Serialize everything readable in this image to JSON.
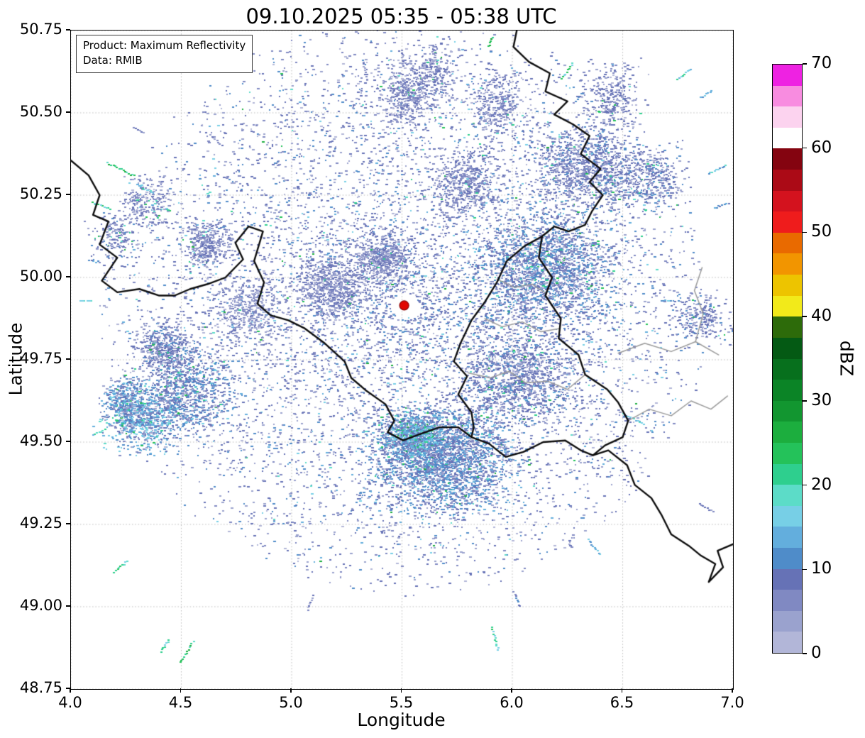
{
  "chart_data": {
    "type": "heatmap",
    "title": "09.10.2025 05:35 - 05:38 UTC",
    "xlabel": "Longitude",
    "ylabel": "Latitude",
    "xlim": [
      4.0,
      7.0
    ],
    "ylim": [
      48.75,
      50.75
    ],
    "grid": true,
    "x_ticks": [
      4.0,
      4.5,
      5.0,
      5.5,
      6.0,
      6.5,
      7.0
    ],
    "x_tick_labels": [
      "4.0",
      "4.5",
      "5.0",
      "5.5",
      "6.0",
      "6.5",
      "7.0"
    ],
    "y_ticks": [
      48.75,
      49.0,
      49.25,
      49.5,
      49.75,
      50.0,
      50.25,
      50.5,
      50.75
    ],
    "y_tick_labels": [
      "48.75",
      "49.00",
      "49.25",
      "49.50",
      "49.75",
      "50.00",
      "50.25",
      "50.50",
      "50.75"
    ],
    "annotation": {
      "line1": "Product: Maximum Reflectivity",
      "line2": "Data: RMIB"
    },
    "colorbar": {
      "label": "dBZ",
      "min": 0,
      "max": 70,
      "step": 2.5,
      "ticks": [
        0,
        10,
        20,
        30,
        40,
        50,
        60,
        70
      ],
      "tick_labels": [
        "0",
        "10",
        "20",
        "30",
        "40",
        "50",
        "60",
        "70"
      ],
      "colors": [
        "#b2b6d8",
        "#9aa2ce",
        "#8089c2",
        "#6672b6",
        "#4f8cc9",
        "#63aedd",
        "#77cfe6",
        "#5cdcc8",
        "#2ecf8e",
        "#24c25a",
        "#1cae3e",
        "#129630",
        "#0b8426",
        "#07701d",
        "#045a14",
        "#2d6b0a",
        "#f2ea1a",
        "#edc400",
        "#f29500",
        "#e96a00",
        "#ef1c1c",
        "#d4121e",
        "#ab0a16",
        "#840410",
        "#ffffff",
        "#fcd3ef",
        "#f88ce0",
        "#ee22e2"
      ]
    },
    "radar_site": {
      "lon": 5.51,
      "lat": 49.915,
      "marker_color": "#e10600"
    },
    "echo_field": {
      "speckle": {
        "n": 9000,
        "r_inner": 0.06,
        "r_outer": 1.38,
        "lat_squash": 0.64,
        "dbz_typical_max": 11
      },
      "clusters": [
        {
          "lon": 5.68,
          "lat": 49.45,
          "rx": 0.28,
          "ry": 0.14,
          "n": 2600,
          "v": 13,
          "g": 0.04
        },
        {
          "lon": 5.55,
          "lat": 49.52,
          "rx": 0.12,
          "ry": 0.06,
          "n": 800,
          "v": 16,
          "g": 0.12
        },
        {
          "lon": 6.15,
          "lat": 50.02,
          "rx": 0.28,
          "ry": 0.16,
          "n": 2000,
          "v": 12,
          "g": 0.05
        },
        {
          "lon": 6.33,
          "lat": 50.33,
          "rx": 0.22,
          "ry": 0.12,
          "n": 1100,
          "v": 10,
          "g": 0.03
        },
        {
          "lon": 4.52,
          "lat": 49.66,
          "rx": 0.18,
          "ry": 0.12,
          "n": 900,
          "v": 12,
          "g": 0.05
        },
        {
          "lon": 4.32,
          "lat": 49.57,
          "rx": 0.15,
          "ry": 0.09,
          "n": 700,
          "v": 16,
          "g": 0.1
        },
        {
          "lon": 5.18,
          "lat": 49.97,
          "rx": 0.16,
          "ry": 0.09,
          "n": 700,
          "v": 8,
          "g": 0.02
        },
        {
          "lon": 5.42,
          "lat": 50.06,
          "rx": 0.12,
          "ry": 0.07,
          "n": 500,
          "v": 8,
          "g": 0.02
        },
        {
          "lon": 4.62,
          "lat": 50.1,
          "rx": 0.1,
          "ry": 0.06,
          "n": 350,
          "v": 8,
          "g": 0.03
        },
        {
          "lon": 5.52,
          "lat": 50.55,
          "rx": 0.1,
          "ry": 0.09,
          "n": 400,
          "v": 8,
          "g": 0.05
        },
        {
          "lon": 5.78,
          "lat": 50.28,
          "rx": 0.14,
          "ry": 0.09,
          "n": 450,
          "v": 8,
          "g": 0.02
        },
        {
          "lon": 6.62,
          "lat": 50.3,
          "rx": 0.15,
          "ry": 0.09,
          "n": 400,
          "v": 10,
          "g": 0.05
        },
        {
          "lon": 6.02,
          "lat": 49.7,
          "rx": 0.25,
          "ry": 0.14,
          "n": 1300,
          "v": 10,
          "g": 0.04
        },
        {
          "lon": 6.85,
          "lat": 49.88,
          "rx": 0.12,
          "ry": 0.07,
          "n": 250,
          "v": 10,
          "g": 0.04
        },
        {
          "lon": 4.42,
          "lat": 49.78,
          "rx": 0.12,
          "ry": 0.08,
          "n": 450,
          "v": 10,
          "g": 0.05
        },
        {
          "lon": 4.25,
          "lat": 49.62,
          "rx": 0.1,
          "ry": 0.07,
          "n": 350,
          "v": 14,
          "g": 0.08
        },
        {
          "lon": 5.92,
          "lat": 50.52,
          "rx": 0.12,
          "ry": 0.1,
          "n": 350,
          "v": 8,
          "g": 0.04
        },
        {
          "lon": 6.45,
          "lat": 50.55,
          "rx": 0.12,
          "ry": 0.09,
          "n": 300,
          "v": 9,
          "g": 0.05
        },
        {
          "lon": 5.65,
          "lat": 50.62,
          "rx": 0.08,
          "ry": 0.08,
          "n": 250,
          "v": 8,
          "g": 0.03
        },
        {
          "lon": 4.8,
          "lat": 49.9,
          "rx": 0.15,
          "ry": 0.1,
          "n": 400,
          "v": 7,
          "g": 0.02
        },
        {
          "lon": 4.35,
          "lat": 50.22,
          "rx": 0.12,
          "ry": 0.08,
          "n": 250,
          "v": 8,
          "g": 0.1
        },
        {
          "lon": 4.2,
          "lat": 50.12,
          "rx": 0.1,
          "ry": 0.07,
          "n": 200,
          "v": 10,
          "g": 0.08
        }
      ],
      "streaks": [
        {
          "lon": 4.22,
          "lat": 50.33,
          "len": 0.14,
          "dbz": 22
        },
        {
          "lon": 4.13,
          "lat": 50.22,
          "len": 0.1,
          "dbz": 20
        },
        {
          "lon": 4.33,
          "lat": 50.27,
          "len": 0.08,
          "dbz": 18
        },
        {
          "lon": 5.33,
          "lat": 50.63,
          "len": 0.1,
          "dbz": 8
        },
        {
          "lon": 5.5,
          "lat": 50.67,
          "len": 0.08,
          "dbz": 6
        },
        {
          "lon": 5.52,
          "lat": 50.58,
          "len": 0.06,
          "dbz": 6
        },
        {
          "lon": 5.9,
          "lat": 50.72,
          "len": 0.06,
          "dbz": 25
        },
        {
          "lon": 6.25,
          "lat": 50.63,
          "len": 0.1,
          "dbz": 20
        },
        {
          "lon": 6.78,
          "lat": 50.62,
          "len": 0.09,
          "dbz": 18
        },
        {
          "lon": 6.88,
          "lat": 50.56,
          "len": 0.07,
          "dbz": 14
        },
        {
          "lon": 6.93,
          "lat": 50.33,
          "len": 0.1,
          "dbz": 14
        },
        {
          "lon": 6.95,
          "lat": 50.22,
          "len": 0.08,
          "dbz": 12
        },
        {
          "lon": 6.55,
          "lat": 49.57,
          "len": 0.12,
          "dbz": 16
        },
        {
          "lon": 6.37,
          "lat": 49.18,
          "len": 0.1,
          "dbz": 14
        },
        {
          "lon": 6.88,
          "lat": 49.3,
          "len": 0.08,
          "dbz": 8
        },
        {
          "lon": 5.92,
          "lat": 48.9,
          "len": 0.12,
          "dbz": 20
        },
        {
          "lon": 6.02,
          "lat": 49.02,
          "len": 0.08,
          "dbz": 8
        },
        {
          "lon": 5.08,
          "lat": 49.01,
          "len": 0.08,
          "dbz": 6
        },
        {
          "lon": 4.52,
          "lat": 48.86,
          "len": 0.12,
          "dbz": 22
        },
        {
          "lon": 4.42,
          "lat": 48.88,
          "len": 0.08,
          "dbz": 18
        },
        {
          "lon": 4.22,
          "lat": 49.12,
          "len": 0.09,
          "dbz": 20
        },
        {
          "lon": 4.12,
          "lat": 49.53,
          "len": 0.07,
          "dbz": 18
        },
        {
          "lon": 4.06,
          "lat": 49.93,
          "len": 0.06,
          "dbz": 16
        },
        {
          "lon": 4.1,
          "lat": 50.05,
          "len": 0.06,
          "dbz": 10
        },
        {
          "lon": 6.7,
          "lat": 49.93,
          "len": 0.06,
          "dbz": 12
        },
        {
          "lon": 6.3,
          "lat": 50.55,
          "len": 0.07,
          "dbz": 10
        },
        {
          "lon": 4.65,
          "lat": 50.42,
          "len": 0.08,
          "dbz": 6
        },
        {
          "lon": 4.3,
          "lat": 50.45,
          "len": 0.06,
          "dbz": 6
        }
      ]
    },
    "borders": {
      "black": [
        [
          [
            4.0,
            50.355
          ],
          [
            4.08,
            50.31
          ],
          [
            4.13,
            50.25
          ],
          [
            4.1,
            50.19
          ],
          [
            4.17,
            50.17
          ],
          [
            4.13,
            50.1
          ],
          [
            4.21,
            50.06
          ],
          [
            4.14,
            49.99
          ],
          [
            4.21,
            49.955
          ],
          [
            4.31,
            49.965
          ],
          [
            4.4,
            49.945
          ],
          [
            4.47,
            49.945
          ],
          [
            4.54,
            49.965
          ],
          [
            4.62,
            49.98
          ],
          [
            4.7,
            50.0
          ],
          [
            4.78,
            50.055
          ],
          [
            4.745,
            50.105
          ],
          [
            4.805,
            50.155
          ],
          [
            4.87,
            50.14
          ],
          [
            4.83,
            50.05
          ],
          [
            4.875,
            49.985
          ],
          [
            4.845,
            49.92
          ],
          [
            4.905,
            49.885
          ],
          [
            4.985,
            49.87
          ],
          [
            5.06,
            49.845
          ],
          [
            5.15,
            49.8
          ],
          [
            5.24,
            49.745
          ],
          [
            5.27,
            49.695
          ],
          [
            5.34,
            49.655
          ],
          [
            5.425,
            49.615
          ],
          [
            5.465,
            49.565
          ],
          [
            5.435,
            49.53
          ],
          [
            5.505,
            49.505
          ],
          [
            5.585,
            49.525
          ],
          [
            5.67,
            49.545
          ],
          [
            5.755,
            49.545
          ],
          [
            5.815,
            49.515
          ],
          [
            5.895,
            49.495
          ],
          [
            5.97,
            49.455
          ],
          [
            6.05,
            49.47
          ],
          [
            6.14,
            49.5
          ],
          [
            6.24,
            49.505
          ],
          [
            6.31,
            49.475
          ],
          [
            6.365,
            49.46
          ],
          [
            6.435,
            49.475
          ],
          [
            6.52,
            49.43
          ],
          [
            6.555,
            49.37
          ],
          [
            6.63,
            49.33
          ],
          [
            6.675,
            49.28
          ],
          [
            6.72,
            49.22
          ],
          [
            6.8,
            49.185
          ],
          [
            6.855,
            49.155
          ],
          [
            6.92,
            49.13
          ],
          [
            6.89,
            49.075
          ],
          [
            6.955,
            49.12
          ],
          [
            6.93,
            49.17
          ],
          [
            7.0,
            49.19
          ]
        ],
        [
          [
            6.02,
            50.75
          ],
          [
            6.005,
            50.7
          ],
          [
            6.075,
            50.655
          ],
          [
            6.17,
            50.62
          ],
          [
            6.15,
            50.565
          ],
          [
            6.25,
            50.535
          ],
          [
            6.19,
            50.495
          ],
          [
            6.275,
            50.465
          ],
          [
            6.35,
            50.43
          ],
          [
            6.31,
            50.375
          ],
          [
            6.4,
            50.33
          ],
          [
            6.35,
            50.29
          ],
          [
            6.41,
            50.25
          ],
          [
            6.36,
            50.2
          ],
          [
            6.33,
            50.16
          ],
          [
            6.255,
            50.14
          ],
          [
            6.19,
            50.155
          ],
          [
            6.135,
            50.125
          ]
        ],
        [
          [
            6.135,
            50.125
          ],
          [
            6.12,
            50.06
          ],
          [
            6.18,
            50.0
          ],
          [
            6.15,
            49.945
          ],
          [
            6.22,
            49.875
          ],
          [
            6.21,
            49.815
          ],
          [
            6.3,
            49.765
          ],
          [
            6.33,
            49.705
          ],
          [
            6.43,
            49.66
          ],
          [
            6.48,
            49.62
          ],
          [
            6.525,
            49.565
          ],
          [
            6.5,
            49.515
          ],
          [
            6.42,
            49.49
          ],
          [
            6.365,
            49.46
          ]
        ],
        [
          [
            6.135,
            50.125
          ],
          [
            6.055,
            50.095
          ],
          [
            5.975,
            50.05
          ],
          [
            5.93,
            49.985
          ],
          [
            5.875,
            49.925
          ],
          [
            5.815,
            49.87
          ],
          [
            5.765,
            49.8
          ],
          [
            5.735,
            49.745
          ],
          [
            5.795,
            49.7
          ],
          [
            5.755,
            49.645
          ],
          [
            5.815,
            49.59
          ],
          [
            5.825,
            49.545
          ],
          [
            5.815,
            49.515
          ]
        ]
      ],
      "gray": [
        [
          [
            5.93,
            49.995
          ],
          [
            6.01,
            49.97
          ],
          [
            6.09,
            49.98
          ],
          [
            6.155,
            49.95
          ]
        ],
        [
          [
            5.875,
            49.875
          ],
          [
            5.955,
            49.85
          ],
          [
            6.045,
            49.865
          ],
          [
            6.13,
            49.835
          ],
          [
            6.215,
            49.845
          ]
        ],
        [
          [
            5.8,
            49.71
          ],
          [
            5.9,
            49.695
          ],
          [
            5.985,
            49.715
          ],
          [
            6.06,
            49.68
          ],
          [
            6.16,
            49.685
          ],
          [
            6.25,
            49.66
          ],
          [
            6.33,
            49.705
          ]
        ],
        [
          [
            6.525,
            49.565
          ],
          [
            6.62,
            49.6
          ],
          [
            6.72,
            49.58
          ],
          [
            6.81,
            49.625
          ],
          [
            6.9,
            49.6
          ],
          [
            6.975,
            49.64
          ]
        ],
        [
          [
            6.48,
            49.77
          ],
          [
            6.6,
            49.8
          ],
          [
            6.72,
            49.775
          ],
          [
            6.83,
            49.805
          ],
          [
            6.935,
            49.765
          ]
        ],
        [
          [
            6.83,
            49.805
          ],
          [
            6.865,
            49.89
          ],
          [
            6.825,
            49.96
          ],
          [
            6.86,
            50.03
          ]
        ]
      ]
    }
  }
}
